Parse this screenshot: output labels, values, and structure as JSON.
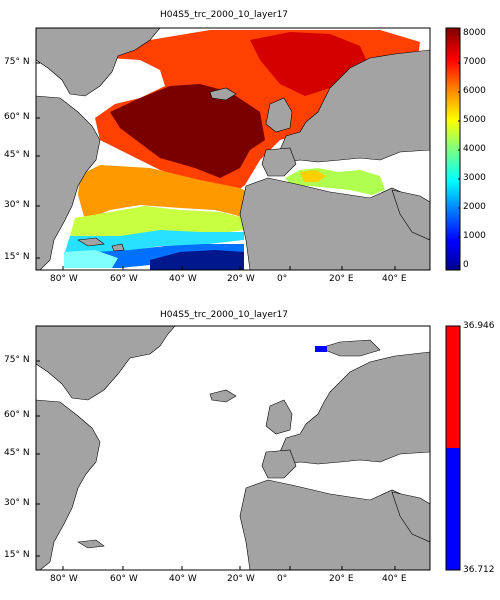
{
  "top_map": {
    "title": "H04S5_trc_2000_10_layer17",
    "colorbar": {
      "min": 0,
      "max": 8000,
      "ticks": [
        "8000",
        "7000",
        "6000",
        "5000",
        "4000",
        "3000",
        "2000",
        "1000",
        "0"
      ],
      "colormap": "jet"
    }
  },
  "bottom_map": {
    "title": "H04S5_trc_2000_10_layer17",
    "colorbar": {
      "min": 36.712,
      "max": 36.946,
      "ticks": [
        "36.946",
        "36.712"
      ],
      "colors": [
        "#ff0000",
        "#0000ff"
      ]
    }
  },
  "axes": {
    "lat_ticks": [
      "75° N",
      "60° N",
      "45° N",
      "30° N",
      "15° N"
    ],
    "lon_ticks": [
      "80° W",
      "60° W",
      "40° W",
      "20° W",
      "0°",
      "20° E",
      "40° E"
    ]
  },
  "colors": {
    "land": "#a3a3a3",
    "ocean_no_data": "#ffffff"
  }
}
